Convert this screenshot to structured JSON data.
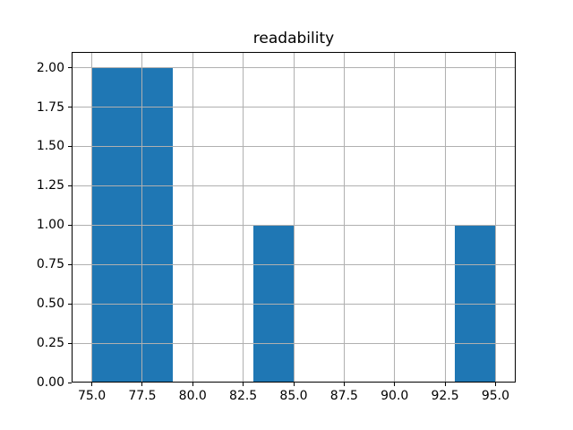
{
  "chart_data": {
    "type": "histogram",
    "title": "readability",
    "xlim": [
      74.0,
      96.0
    ],
    "ylim": [
      0.0,
      2.1
    ],
    "grid": true,
    "grid_over_bars": true,
    "x_ticks": {
      "values": [
        75.0,
        77.5,
        80.0,
        82.5,
        85.0,
        87.5,
        90.0,
        92.5,
        95.0
      ],
      "labels": [
        "75.0",
        "77.5",
        "80.0",
        "82.5",
        "85.0",
        "87.5",
        "90.0",
        "92.5",
        "95.0"
      ]
    },
    "y_ticks": {
      "values": [
        0.0,
        0.25,
        0.5,
        0.75,
        1.0,
        1.25,
        1.5,
        1.75,
        2.0
      ],
      "labels": [
        "0.00",
        "0.25",
        "0.50",
        "0.75",
        "1.00",
        "1.25",
        "1.50",
        "1.75",
        "2.00"
      ]
    },
    "bins": {
      "edges": [
        75.0,
        77.0,
        79.0,
        81.0,
        83.0,
        85.0,
        87.0,
        89.0,
        91.0,
        93.0,
        95.0
      ],
      "counts": [
        2,
        2,
        0,
        0,
        1,
        0,
        0,
        0,
        0,
        1
      ]
    },
    "colors": {
      "bar": "#1f77b4",
      "grid": "#b0b0b0",
      "spine": "#000000",
      "text": "#000000",
      "background": "#ffffff"
    }
  }
}
